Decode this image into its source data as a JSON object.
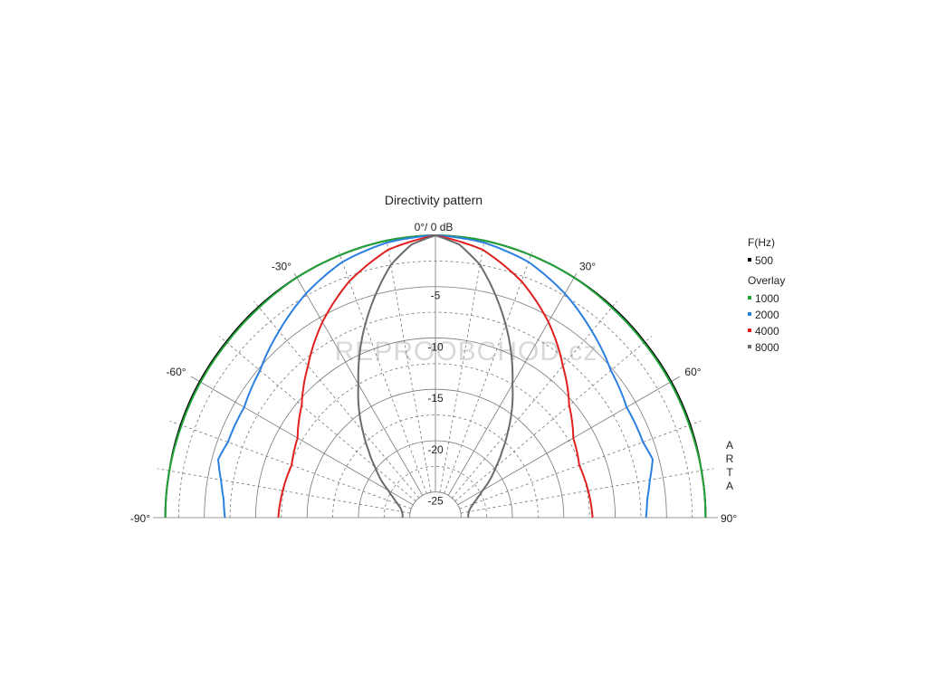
{
  "chart_data": {
    "type": "polar",
    "title": "Directivity pattern",
    "top_label": "0°/ 0 dB",
    "angle_range_deg": [
      -90,
      90
    ],
    "angle_ticks": [
      {
        "deg": -90,
        "label": "-90°"
      },
      {
        "deg": -60,
        "label": "-60°"
      },
      {
        "deg": -30,
        "label": "-30°"
      },
      {
        "deg": 30,
        "label": "30°"
      },
      {
        "deg": 60,
        "label": "60°"
      },
      {
        "deg": 90,
        "label": "90°"
      }
    ],
    "radial_range_db": [
      -27.5,
      0
    ],
    "radial_ticks": [
      {
        "db": -5,
        "label": "-5"
      },
      {
        "db": -10,
        "label": "-10"
      },
      {
        "db": -15,
        "label": "-15"
      },
      {
        "db": -20,
        "label": "-20"
      },
      {
        "db": -25,
        "label": "-25"
      }
    ],
    "grid": true,
    "legend": {
      "placement": "right",
      "header": "F(Hz)",
      "overlay_header": "Overlay"
    },
    "series": [
      {
        "name": "500",
        "group": "main",
        "color": "#000000",
        "angles": [
          0,
          10,
          20,
          30,
          40,
          50,
          60,
          70,
          80,
          90
        ],
        "values": [
          0,
          -0.1,
          -0.3,
          -0.5,
          -0.7,
          -0.9,
          -1.0,
          -1.1,
          -1.2,
          -1.2
        ]
      },
      {
        "name": "1000",
        "group": "overlay",
        "color": "#22a33a",
        "angles": [
          0,
          10,
          20,
          30,
          40,
          50,
          60,
          70,
          80,
          90
        ],
        "values": [
          0,
          -0.1,
          -0.3,
          -0.5,
          -0.8,
          -1.0,
          -1.1,
          -1.2,
          -1.2,
          -1.2
        ]
      },
      {
        "name": "2000",
        "group": "overlay",
        "color": "#2a7fe0",
        "angles": [
          0,
          10,
          20,
          30,
          40,
          50,
          60,
          70,
          75,
          80,
          85,
          90
        ],
        "values": [
          0,
          -0.3,
          -1.0,
          -2.3,
          -3.8,
          -5.2,
          -6.0,
          -6.0,
          -5.6,
          -6.3,
          -6.8,
          -7.0
        ]
      },
      {
        "name": "4000",
        "group": "overlay",
        "color": "#e0201e",
        "angles": [
          0,
          10,
          20,
          30,
          40,
          50,
          60,
          70,
          80,
          90
        ],
        "values": [
          0,
          -1.0,
          -3.0,
          -5.5,
          -8.2,
          -10.5,
          -12.0,
          -12.6,
          -12.4,
          -12.2
        ]
      },
      {
        "name": "8000",
        "group": "overlay",
        "color": "#6b6b6b",
        "angles": [
          0,
          5,
          10,
          15,
          20,
          25,
          30,
          35,
          40,
          45,
          50,
          55,
          60,
          65,
          70,
          75,
          80,
          85,
          90
        ],
        "values": [
          0,
          -0.8,
          -2.5,
          -5.0,
          -7.5,
          -10.0,
          -12.5,
          -14.5,
          -16.5,
          -18.3,
          -19.8,
          -21.0,
          -22.2,
          -23.0,
          -23.6,
          -24.0,
          -24.2,
          -24.3,
          -24.3
        ]
      }
    ]
  },
  "watermark": "REPROOBCHOD.cz",
  "brand_vertical": [
    "A",
    "R",
    "T",
    "A"
  ]
}
